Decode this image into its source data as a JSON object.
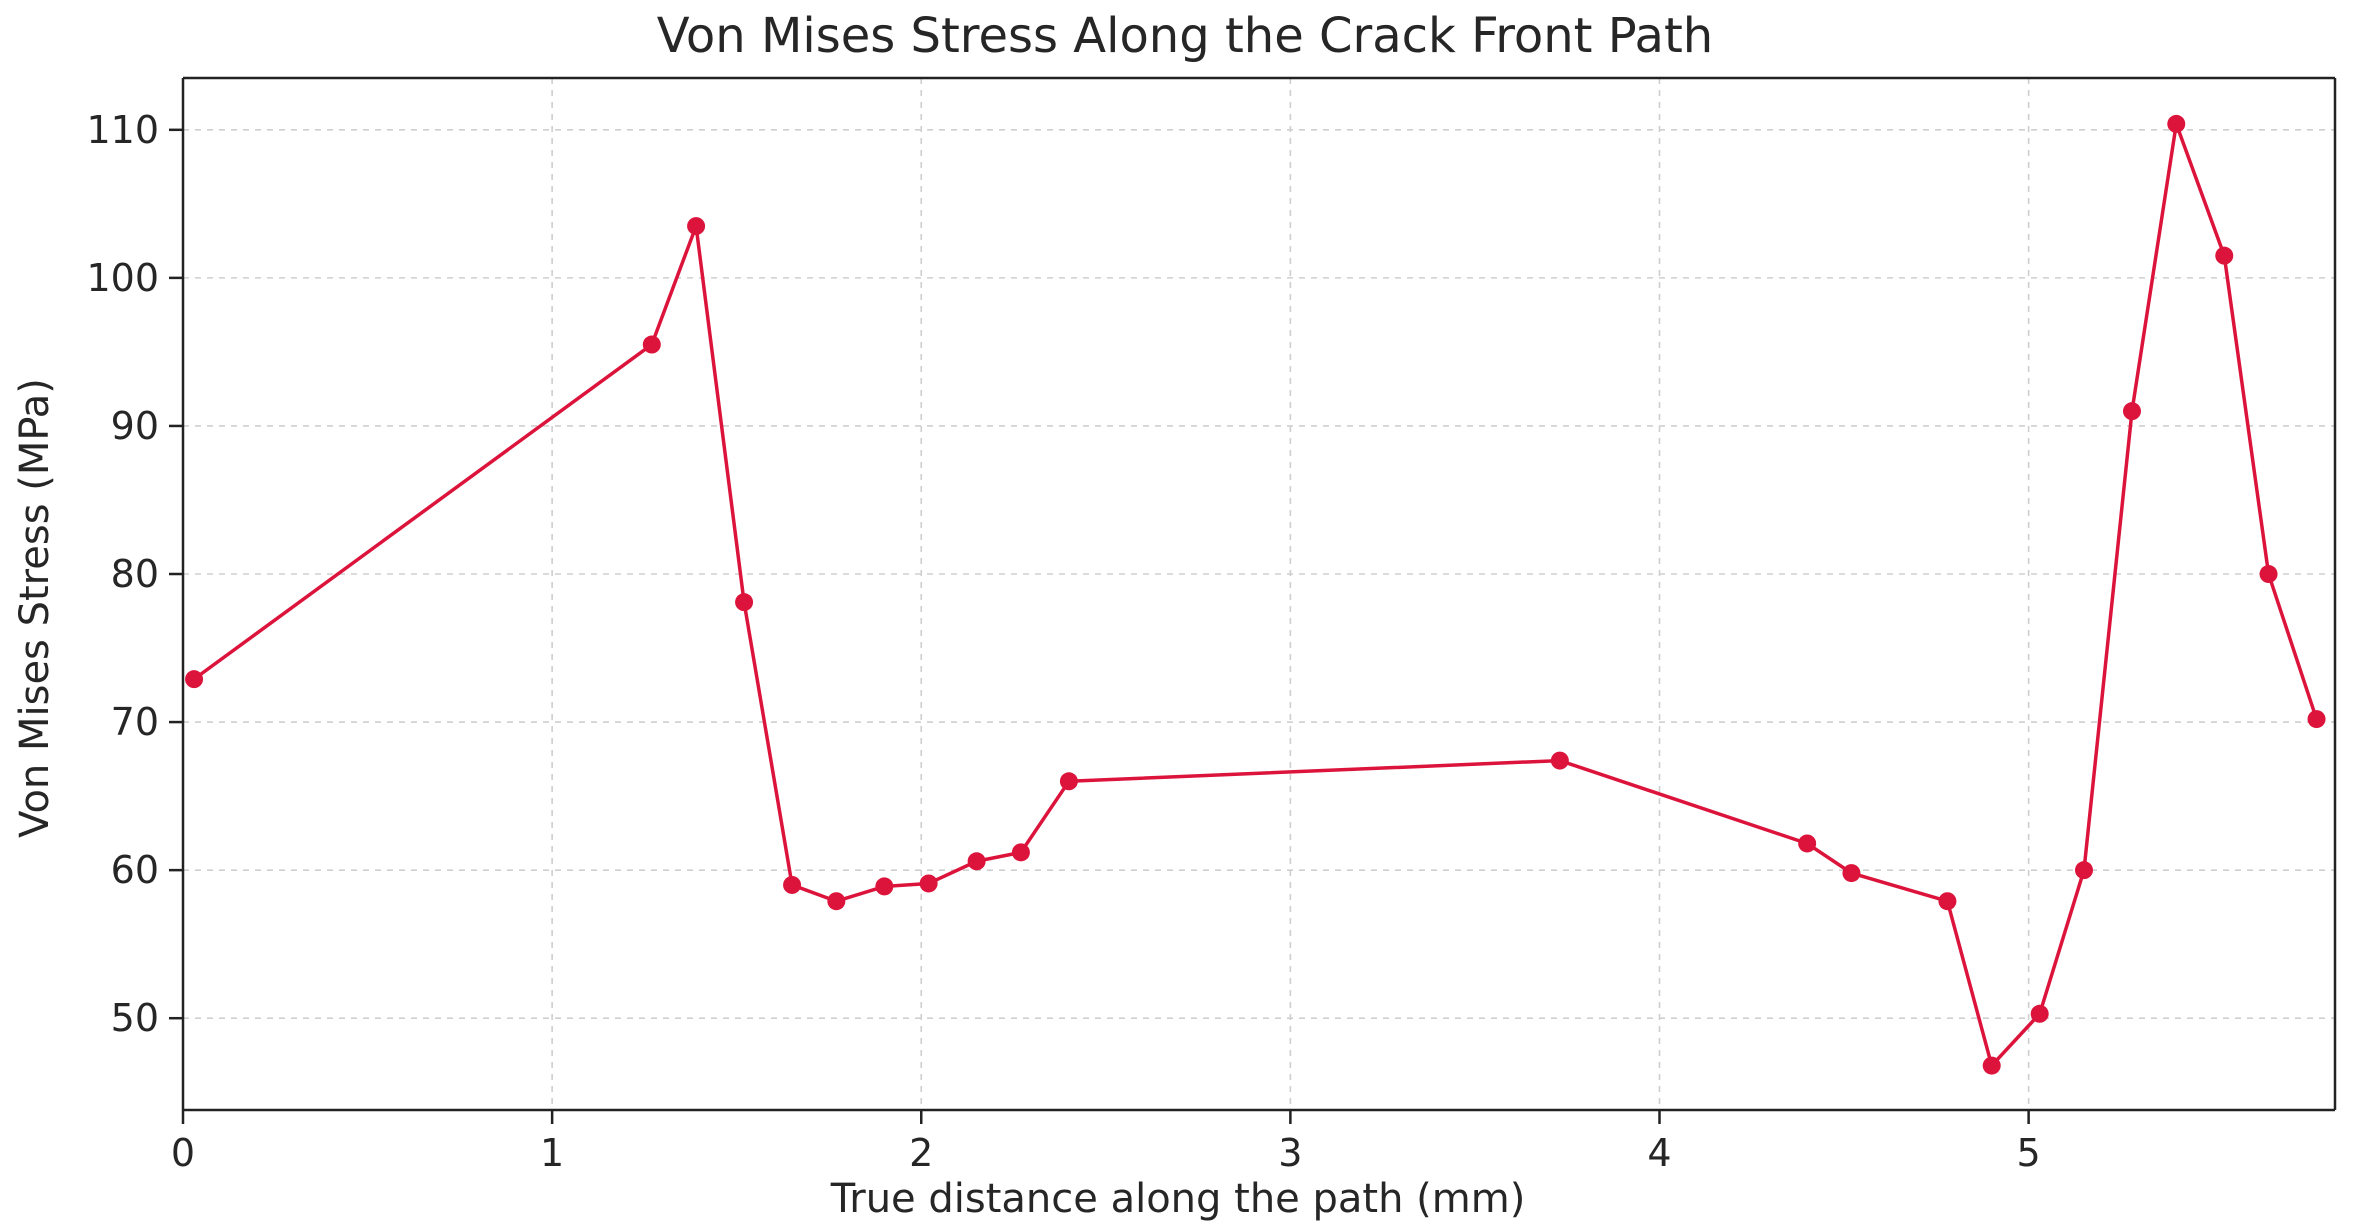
{
  "chart_data": {
    "type": "line",
    "title": "Von Mises Stress Along the Crack Front Path",
    "xlabel": "True distance along the path (mm)",
    "ylabel": "Von Mises Stress (MPa)",
    "xlim": [
      0,
      5.83
    ],
    "ylim": [
      43.8,
      113.5
    ],
    "x_ticks": [
      0,
      1,
      2,
      3,
      4,
      5,
      6
    ],
    "y_ticks": [
      50,
      60,
      70,
      80,
      90,
      100,
      110
    ],
    "grid": true,
    "series_color": "#dc143c",
    "x": [
      0.03,
      1.27,
      1.39,
      1.52,
      1.65,
      1.77,
      1.9,
      2.02,
      2.15,
      2.27,
      2.4,
      3.73,
      4.4,
      4.52,
      4.78,
      4.9,
      5.03,
      5.15,
      5.28,
      5.4,
      5.53,
      5.65,
      5.78
    ],
    "values": [
      72.9,
      95.5,
      103.5,
      78.1,
      59.0,
      57.9,
      58.9,
      59.1,
      60.6,
      61.2,
      66.0,
      67.4,
      61.8,
      59.8,
      57.9,
      46.8,
      50.3,
      60.0,
      91.0,
      110.4,
      101.5,
      80.0,
      70.2
    ]
  }
}
